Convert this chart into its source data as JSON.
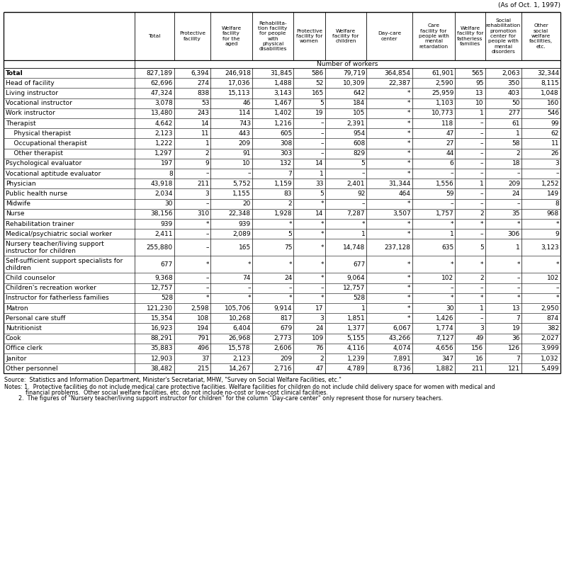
{
  "date_note": "(As of Oct. 1, 1997)",
  "col_headers": [
    "",
    "Total",
    "Protective\nfacility",
    "Welfare\nfacility\nfor the\naged",
    "Rehabilita-\ntion facility\nfor people\nwith\nphysical\ndisabilities",
    "Protective\nfacility for\nwomen",
    "Welfare\nfacility for\nchildren",
    "Day-care\ncenter",
    "Care\nfacility for\npeople with\nmental\nretardation",
    "Welfare\nfacility for\nfatherless\nfamilies",
    "Social\nrehabilitation\npromotion\ncenter for\npeople with\nmental\ndisorders",
    "Other\nsocial\nwelfare\nfacilities,\netc."
  ],
  "subheader": "Number of workers",
  "rows": [
    [
      "Total",
      "827,189",
      "6,394",
      "246,918",
      "31,845",
      "586",
      "79,719",
      "364,854",
      "61,901",
      "565",
      "2,063",
      "32,344"
    ],
    [
      "Head of facility",
      "62,696",
      "274",
      "17,036",
      "1,488",
      "52",
      "10,309",
      "22,387",
      "2,590",
      "95",
      "350",
      "8,115"
    ],
    [
      "Living instructor",
      "47,324",
      "838",
      "15,113",
      "3,143",
      "165",
      "642",
      "*",
      "25,959",
      "13",
      "403",
      "1,048"
    ],
    [
      "Vocational instructor",
      "3,078",
      "53",
      "46",
      "1,467",
      "5",
      "184",
      "*",
      "1,103",
      "10",
      "50",
      "160"
    ],
    [
      "Work instructor",
      "13,480",
      "243",
      "114",
      "1,402",
      "19",
      "105",
      "*",
      "10,773",
      "1",
      "277",
      "546"
    ],
    [
      "Therapist",
      "4,642",
      "14",
      "743",
      "1,216",
      "–",
      "2,391",
      "*",
      "118",
      "–",
      "61",
      "99"
    ],
    [
      "    Physical therapist",
      "2,123",
      "11",
      "443",
      "605",
      "–",
      "954",
      "*",
      "47",
      "–",
      "1",
      "62"
    ],
    [
      "    Occupational therapist",
      "1,222",
      "1",
      "209",
      "308",
      "–",
      "608",
      "*",
      "27",
      "–",
      "58",
      "11"
    ],
    [
      "    Other therapist",
      "1,297",
      "2",
      "91",
      "303",
      "–",
      "829",
      "*",
      "44",
      "–",
      "2",
      "26"
    ],
    [
      "Psychological evaluator",
      "197",
      "9",
      "10",
      "132",
      "14",
      "5",
      "*",
      "6",
      "–",
      "18",
      "3"
    ],
    [
      "Vocational aptitude evaluator",
      "8",
      "–",
      "–",
      "7",
      "1",
      "–",
      "*",
      "–",
      "–",
      "–",
      "–"
    ],
    [
      "Physician",
      "43,918",
      "211",
      "5,752",
      "1,159",
      "33",
      "2,401",
      "31,344",
      "1,556",
      "1",
      "209",
      "1,252"
    ],
    [
      "Public health nurse",
      "2,034",
      "3",
      "1,155",
      "83",
      "5",
      "92",
      "464",
      "59",
      "–",
      "24",
      "149"
    ],
    [
      "Midwife",
      "30",
      "–",
      "20",
      "2",
      "*",
      "–",
      "*",
      "–",
      "–",
      "–",
      "8"
    ],
    [
      "Nurse",
      "38,156",
      "310",
      "22,348",
      "1,928",
      "14",
      "7,287",
      "3,507",
      "1,757",
      "2",
      "35",
      "968"
    ],
    [
      "Rehabilitation trainer",
      "939",
      "*",
      "939",
      "*",
      "*",
      "*",
      "*",
      "*",
      "*",
      "*",
      "*"
    ],
    [
      "Medical/psychiatric social worker",
      "2,411",
      "–",
      "2,089",
      "5",
      "*",
      "1",
      "*",
      "1",
      "–",
      "306",
      "9"
    ],
    [
      "Nursery teacher/living support\ninstructor for children",
      "255,880",
      "–",
      "165",
      "75",
      "*",
      "14,748",
      "237,128",
      "635",
      "5",
      "1",
      "3,123"
    ],
    [
      "Self-sufficient support specialists for\nchildren",
      "677",
      "*",
      "*",
      "*",
      "*",
      "677",
      "*",
      "*",
      "*",
      "*",
      "*"
    ],
    [
      "Child counselor",
      "9,368",
      "–",
      "74",
      "24",
      "*",
      "9,064",
      "*",
      "102",
      "2",
      "–",
      "102"
    ],
    [
      "Children's recreation worker",
      "12,757",
      "–",
      "–",
      "–",
      "–",
      "12,757",
      "*",
      "–",
      "–",
      "–",
      "–"
    ],
    [
      "Instructor for fatherless families",
      "528",
      "*",
      "*",
      "*",
      "*",
      "528",
      "*",
      "*",
      "*",
      "*",
      "*"
    ],
    [
      "Matron",
      "121,230",
      "2,598",
      "105,706",
      "9,914",
      "17",
      "1",
      "*",
      "30",
      "1",
      "13",
      "2,950"
    ],
    [
      "Personal care stuff",
      "15,354",
      "108",
      "10,268",
      "817",
      "3",
      "1,851",
      "*",
      "1,426",
      "–",
      "7",
      "874"
    ],
    [
      "Nutritionist",
      "16,923",
      "194",
      "6,404",
      "679",
      "24",
      "1,377",
      "6,067",
      "1,774",
      "3",
      "19",
      "382"
    ],
    [
      "Cook",
      "88,291",
      "791",
      "26,968",
      "2,773",
      "109",
      "5,155",
      "43,266",
      "7,127",
      "49",
      "36",
      "2,027"
    ],
    [
      "Office clerk",
      "35,883",
      "496",
      "15,578",
      "2,606",
      "76",
      "4,116",
      "4,074",
      "4,656",
      "156",
      "126",
      "3,999"
    ],
    [
      "Janitor",
      "12,903",
      "37",
      "2,123",
      "209",
      "2",
      "1,239",
      "7,891",
      "347",
      "16",
      "7",
      "1,032"
    ],
    [
      "Other personnel",
      "38,482",
      "215",
      "14,267",
      "2,716",
      "47",
      "4,789",
      "8,736",
      "1,882",
      "211",
      "121",
      "5,499"
    ]
  ],
  "indented_rows": [
    6,
    7,
    8
  ],
  "bold_rows": [
    0
  ],
  "source_note": "Source:  Statistics and Information Department, Minister's Secretariat, MHW, \"Survey on Social Welfare Facilities, etc.\"",
  "notes": [
    "Notes: 1.  Protective facilities do not include medical care protective facilities. Welfare facilities for children do not include child delivery space for women with medical and",
    "            financial problems.  Other social welfare facilities, etc. do not include no-cost or low-cost clinical facilities.",
    "        2.  The figures of \"Nursery teacher/living support instructor for children\" for the column \"Day-care center\" only represent those for nursery teachers."
  ]
}
